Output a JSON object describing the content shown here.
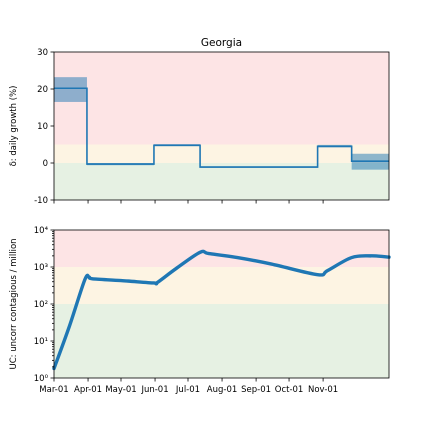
{
  "chart_data": [
    {
      "type": "line",
      "title": "Georgia",
      "ylabel": "δ: daily growth (%)",
      "ylim": [
        -10,
        30
      ],
      "yticks": [
        "-10",
        "0",
        "10",
        "20",
        "30"
      ],
      "xlim": [
        "2020-03-01",
        "2020-12-31"
      ],
      "bands": [
        {
          "from": -10,
          "to": 0,
          "color": "#e6f1e3"
        },
        {
          "from": 0,
          "to": 5,
          "color": "#fdf4e3"
        },
        {
          "from": 5,
          "to": 30,
          "color": "#fde4e5"
        }
      ],
      "series": [
        {
          "color": "#1f77b4",
          "shape": "step",
          "segments": [
            {
              "start": "2020-03-01",
              "end": "2020-03-31",
              "value": 20.2,
              "ci": [
                16.5,
                23.2
              ]
            },
            {
              "start": "2020-03-31",
              "end": "2020-05-31",
              "value": -0.3,
              "ci": [
                -0.6,
                0.0
              ]
            },
            {
              "start": "2020-05-31",
              "end": "2020-07-12",
              "value": 4.8,
              "ci": [
                4.5,
                5.1
              ]
            },
            {
              "start": "2020-07-12",
              "end": "2020-10-27",
              "value": -1.1,
              "ci": [
                -1.3,
                -0.9
              ]
            },
            {
              "start": "2020-10-27",
              "end": "2020-11-27",
              "value": 4.5,
              "ci": [
                4.2,
                4.9
              ]
            },
            {
              "start": "2020-11-27",
              "end": "2020-12-31",
              "value": 0.5,
              "ci": [
                -1.8,
                2.5
              ]
            }
          ]
        }
      ]
    },
    {
      "type": "line",
      "ylabel": "UC: uncorr contagious / million",
      "yscale": "log",
      "ylim": [
        1,
        10000
      ],
      "yticks": [
        "10⁰",
        "10¹",
        "10²",
        "10³",
        "10⁴"
      ],
      "xlim": [
        "2020-03-01",
        "2020-12-31"
      ],
      "xticks": [
        "Mar-01",
        "Apr-01",
        "May-01",
        "Jun-01",
        "Jul-01",
        "Aug-01",
        "Sep-01",
        "Oct-01",
        "Nov-01"
      ],
      "xtick_dates": [
        "2020-03-01",
        "2020-04-01",
        "2020-05-01",
        "2020-06-01",
        "2020-07-01",
        "2020-08-01",
        "2020-09-01",
        "2020-10-01",
        "2020-11-01"
      ],
      "bands": [
        {
          "from": 1,
          "to": 100,
          "color": "#e6f1e3"
        },
        {
          "from": 100,
          "to": 1000,
          "color": "#fdf4e3"
        },
        {
          "from": 1000,
          "to": 10000,
          "color": "#fde4e5"
        }
      ],
      "series": [
        {
          "color": "#1f77b4",
          "x": [
            "2020-03-01",
            "2020-03-15",
            "2020-03-29",
            "2020-04-02",
            "2020-04-05",
            "2020-05-01",
            "2020-05-31",
            "2020-06-03",
            "2020-06-20",
            "2020-07-12",
            "2020-07-20",
            "2020-08-15",
            "2020-09-15",
            "2020-10-27",
            "2020-11-05",
            "2020-11-27",
            "2020-12-15",
            "2020-12-31"
          ],
          "y": [
            1.8,
            25,
            450,
            530,
            480,
            430,
            370,
            380,
            900,
            2500,
            2300,
            1800,
            1200,
            620,
            800,
            1800,
            2000,
            1850
          ]
        }
      ]
    }
  ]
}
